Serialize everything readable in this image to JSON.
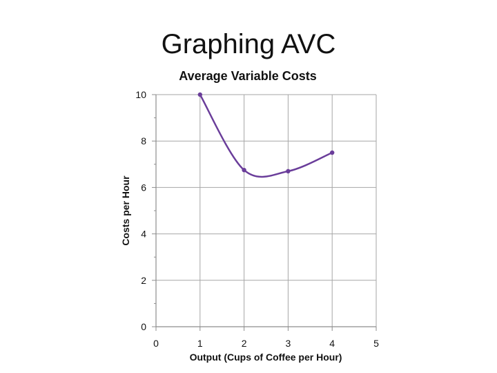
{
  "slide": {
    "title": "Graphing AVC"
  },
  "chart_data": {
    "type": "line",
    "title": "Average Variable Costs",
    "xlabel": "Output (Cups of Coffee per Hour)",
    "ylabel": "Costs per Hour",
    "x_ticks": [
      0,
      1,
      2,
      3,
      4,
      5
    ],
    "y_ticks": [
      0,
      2,
      4,
      6,
      8,
      10
    ],
    "xlim": [
      0,
      5
    ],
    "ylim": [
      0,
      10
    ],
    "grid": true,
    "smooth": true,
    "series": [
      {
        "color": "#6a3d9a",
        "x": [
          1,
          2,
          3,
          4
        ],
        "y": [
          10,
          6.75,
          6.7,
          7.5
        ]
      }
    ]
  }
}
